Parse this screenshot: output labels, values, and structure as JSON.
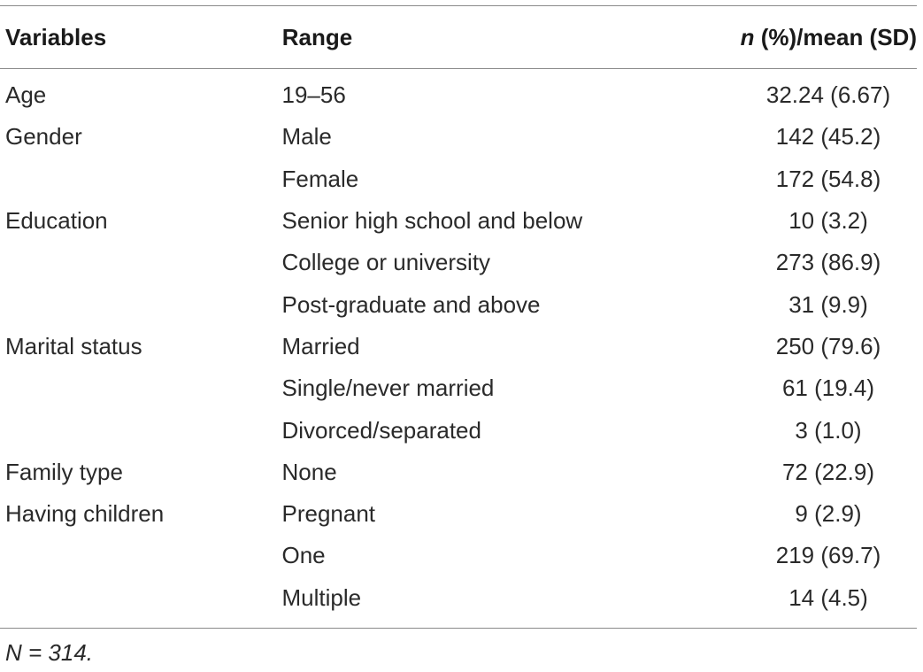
{
  "table": {
    "headers": {
      "variables": "Variables",
      "range": "Range",
      "value_italic": "n",
      "value_rest": " (%)/mean (SD)"
    },
    "rows": [
      {
        "variable": "Age",
        "range": "19–56",
        "value": "32.24 (6.67)"
      },
      {
        "variable": "Gender",
        "range": "Male",
        "value": "142 (45.2)"
      },
      {
        "variable": "",
        "range": "Female",
        "value": "172 (54.8)"
      },
      {
        "variable": "Education",
        "range": "Senior high school and below",
        "value": "10 (3.2)"
      },
      {
        "variable": "",
        "range": "College or university",
        "value": "273 (86.9)"
      },
      {
        "variable": "",
        "range": "Post-graduate and above",
        "value": "31 (9.9)"
      },
      {
        "variable": "Marital status",
        "range": "Married",
        "value": "250 (79.6)"
      },
      {
        "variable": "",
        "range": "Single/never married",
        "value": "61 (19.4)"
      },
      {
        "variable": "",
        "range": "Divorced/separated",
        "value": "3 (1.0)"
      },
      {
        "variable": "Family type",
        "range": "None",
        "value": "72 (22.9)"
      },
      {
        "variable": "Having children",
        "range": "Pregnant",
        "value": "9 (2.9)"
      },
      {
        "variable": "",
        "range": "One",
        "value": "219 (69.7)"
      },
      {
        "variable": "",
        "range": "Multiple",
        "value": "14 (4.5)"
      }
    ],
    "footnote": "N = 314."
  }
}
